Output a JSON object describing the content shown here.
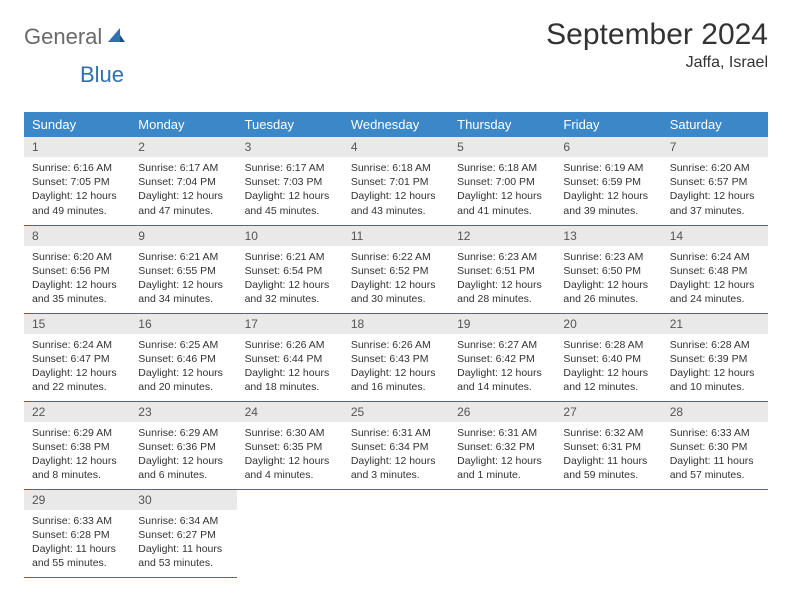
{
  "logo": {
    "text1": "General",
    "text2": "Blue"
  },
  "title": "September 2024",
  "location": "Jaffa, Israel",
  "colors": {
    "header_bg": "#3b87c8",
    "header_text": "#ffffff",
    "daynum_bg": "#e9e9e9",
    "row_border": "#2f6fb3",
    "logo_gray": "#6a6a6a",
    "logo_blue": "#2f6fb3",
    "body_bg": "#ffffff"
  },
  "weekdays": [
    "Sunday",
    "Monday",
    "Tuesday",
    "Wednesday",
    "Thursday",
    "Friday",
    "Saturday"
  ],
  "weeks": [
    [
      {
        "day": "1",
        "sunrise": "Sunrise: 6:16 AM",
        "sunset": "Sunset: 7:05 PM",
        "daylight": "Daylight: 12 hours and 49 minutes."
      },
      {
        "day": "2",
        "sunrise": "Sunrise: 6:17 AM",
        "sunset": "Sunset: 7:04 PM",
        "daylight": "Daylight: 12 hours and 47 minutes."
      },
      {
        "day": "3",
        "sunrise": "Sunrise: 6:17 AM",
        "sunset": "Sunset: 7:03 PM",
        "daylight": "Daylight: 12 hours and 45 minutes."
      },
      {
        "day": "4",
        "sunrise": "Sunrise: 6:18 AM",
        "sunset": "Sunset: 7:01 PM",
        "daylight": "Daylight: 12 hours and 43 minutes."
      },
      {
        "day": "5",
        "sunrise": "Sunrise: 6:18 AM",
        "sunset": "Sunset: 7:00 PM",
        "daylight": "Daylight: 12 hours and 41 minutes."
      },
      {
        "day": "6",
        "sunrise": "Sunrise: 6:19 AM",
        "sunset": "Sunset: 6:59 PM",
        "daylight": "Daylight: 12 hours and 39 minutes."
      },
      {
        "day": "7",
        "sunrise": "Sunrise: 6:20 AM",
        "sunset": "Sunset: 6:57 PM",
        "daylight": "Daylight: 12 hours and 37 minutes."
      }
    ],
    [
      {
        "day": "8",
        "sunrise": "Sunrise: 6:20 AM",
        "sunset": "Sunset: 6:56 PM",
        "daylight": "Daylight: 12 hours and 35 minutes."
      },
      {
        "day": "9",
        "sunrise": "Sunrise: 6:21 AM",
        "sunset": "Sunset: 6:55 PM",
        "daylight": "Daylight: 12 hours and 34 minutes."
      },
      {
        "day": "10",
        "sunrise": "Sunrise: 6:21 AM",
        "sunset": "Sunset: 6:54 PM",
        "daylight": "Daylight: 12 hours and 32 minutes."
      },
      {
        "day": "11",
        "sunrise": "Sunrise: 6:22 AM",
        "sunset": "Sunset: 6:52 PM",
        "daylight": "Daylight: 12 hours and 30 minutes."
      },
      {
        "day": "12",
        "sunrise": "Sunrise: 6:23 AM",
        "sunset": "Sunset: 6:51 PM",
        "daylight": "Daylight: 12 hours and 28 minutes."
      },
      {
        "day": "13",
        "sunrise": "Sunrise: 6:23 AM",
        "sunset": "Sunset: 6:50 PM",
        "daylight": "Daylight: 12 hours and 26 minutes."
      },
      {
        "day": "14",
        "sunrise": "Sunrise: 6:24 AM",
        "sunset": "Sunset: 6:48 PM",
        "daylight": "Daylight: 12 hours and 24 minutes."
      }
    ],
    [
      {
        "day": "15",
        "sunrise": "Sunrise: 6:24 AM",
        "sunset": "Sunset: 6:47 PM",
        "daylight": "Daylight: 12 hours and 22 minutes."
      },
      {
        "day": "16",
        "sunrise": "Sunrise: 6:25 AM",
        "sunset": "Sunset: 6:46 PM",
        "daylight": "Daylight: 12 hours and 20 minutes."
      },
      {
        "day": "17",
        "sunrise": "Sunrise: 6:26 AM",
        "sunset": "Sunset: 6:44 PM",
        "daylight": "Daylight: 12 hours and 18 minutes."
      },
      {
        "day": "18",
        "sunrise": "Sunrise: 6:26 AM",
        "sunset": "Sunset: 6:43 PM",
        "daylight": "Daylight: 12 hours and 16 minutes."
      },
      {
        "day": "19",
        "sunrise": "Sunrise: 6:27 AM",
        "sunset": "Sunset: 6:42 PM",
        "daylight": "Daylight: 12 hours and 14 minutes."
      },
      {
        "day": "20",
        "sunrise": "Sunrise: 6:28 AM",
        "sunset": "Sunset: 6:40 PM",
        "daylight": "Daylight: 12 hours and 12 minutes."
      },
      {
        "day": "21",
        "sunrise": "Sunrise: 6:28 AM",
        "sunset": "Sunset: 6:39 PM",
        "daylight": "Daylight: 12 hours and 10 minutes."
      }
    ],
    [
      {
        "day": "22",
        "sunrise": "Sunrise: 6:29 AM",
        "sunset": "Sunset: 6:38 PM",
        "daylight": "Daylight: 12 hours and 8 minutes."
      },
      {
        "day": "23",
        "sunrise": "Sunrise: 6:29 AM",
        "sunset": "Sunset: 6:36 PM",
        "daylight": "Daylight: 12 hours and 6 minutes."
      },
      {
        "day": "24",
        "sunrise": "Sunrise: 6:30 AM",
        "sunset": "Sunset: 6:35 PM",
        "daylight": "Daylight: 12 hours and 4 minutes."
      },
      {
        "day": "25",
        "sunrise": "Sunrise: 6:31 AM",
        "sunset": "Sunset: 6:34 PM",
        "daylight": "Daylight: 12 hours and 3 minutes."
      },
      {
        "day": "26",
        "sunrise": "Sunrise: 6:31 AM",
        "sunset": "Sunset: 6:32 PM",
        "daylight": "Daylight: 12 hours and 1 minute."
      },
      {
        "day": "27",
        "sunrise": "Sunrise: 6:32 AM",
        "sunset": "Sunset: 6:31 PM",
        "daylight": "Daylight: 11 hours and 59 minutes."
      },
      {
        "day": "28",
        "sunrise": "Sunrise: 6:33 AM",
        "sunset": "Sunset: 6:30 PM",
        "daylight": "Daylight: 11 hours and 57 minutes."
      }
    ],
    [
      {
        "day": "29",
        "sunrise": "Sunrise: 6:33 AM",
        "sunset": "Sunset: 6:28 PM",
        "daylight": "Daylight: 11 hours and 55 minutes."
      },
      {
        "day": "30",
        "sunrise": "Sunrise: 6:34 AM",
        "sunset": "Sunset: 6:27 PM",
        "daylight": "Daylight: 11 hours and 53 minutes."
      },
      null,
      null,
      null,
      null,
      null
    ]
  ]
}
